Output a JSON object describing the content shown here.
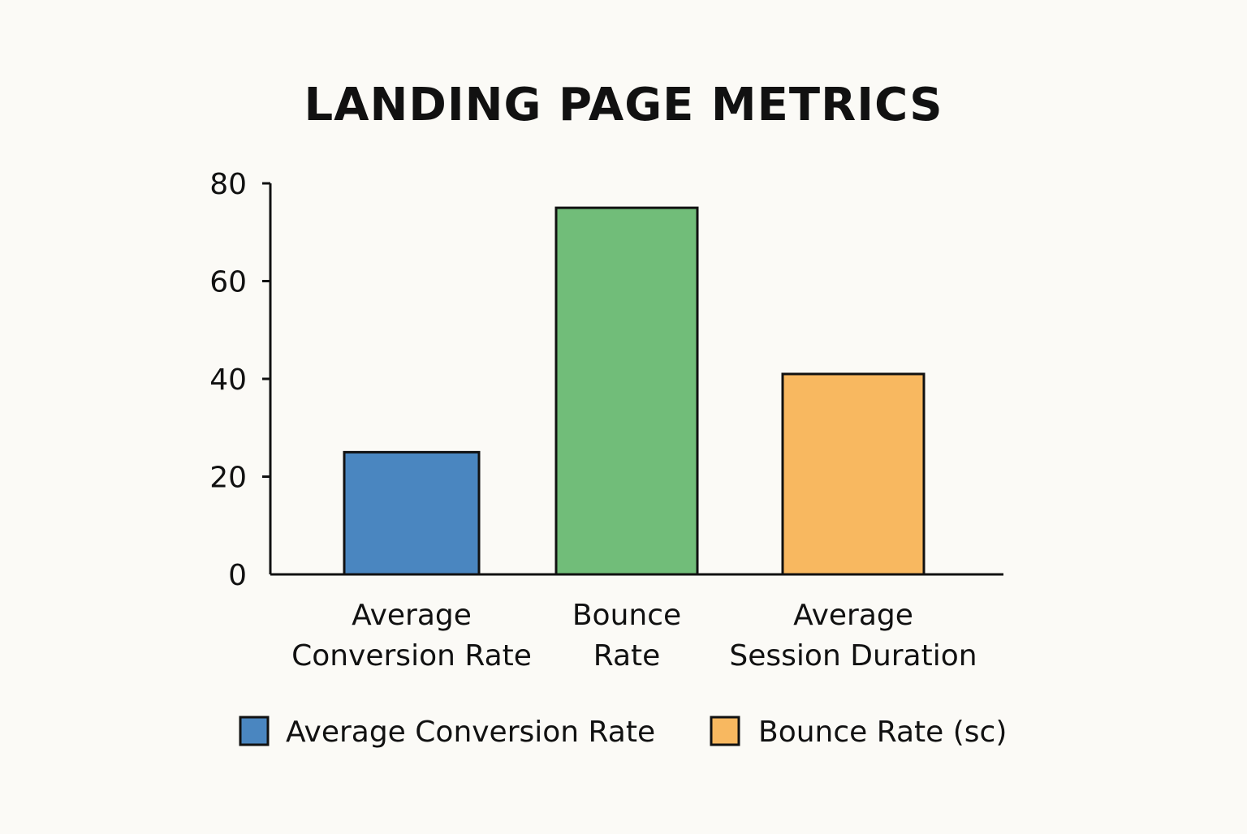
{
  "chart_data": {
    "type": "bar",
    "title": "LANDING PAGE METRICS",
    "xlabel": "",
    "ylabel": "",
    "categories": [
      [
        "Average",
        "Conversion Rate"
      ],
      [
        "Bounce",
        "Rate"
      ],
      [
        "Average",
        "Session Duration"
      ]
    ],
    "values": [
      25,
      75,
      41
    ],
    "colors": [
      "#4a86c0",
      "#71bd79",
      "#f8b860"
    ],
    "ylim": [
      0,
      80
    ],
    "yticks": [
      0,
      20,
      40,
      60,
      80
    ],
    "grid": false,
    "legend": {
      "position": "bottom",
      "entries": [
        {
          "label": "Average Conversion Rate",
          "color": "#4a86c0"
        },
        {
          "label": "Bounce Rate (sc)",
          "color": "#f8b860"
        }
      ]
    }
  }
}
